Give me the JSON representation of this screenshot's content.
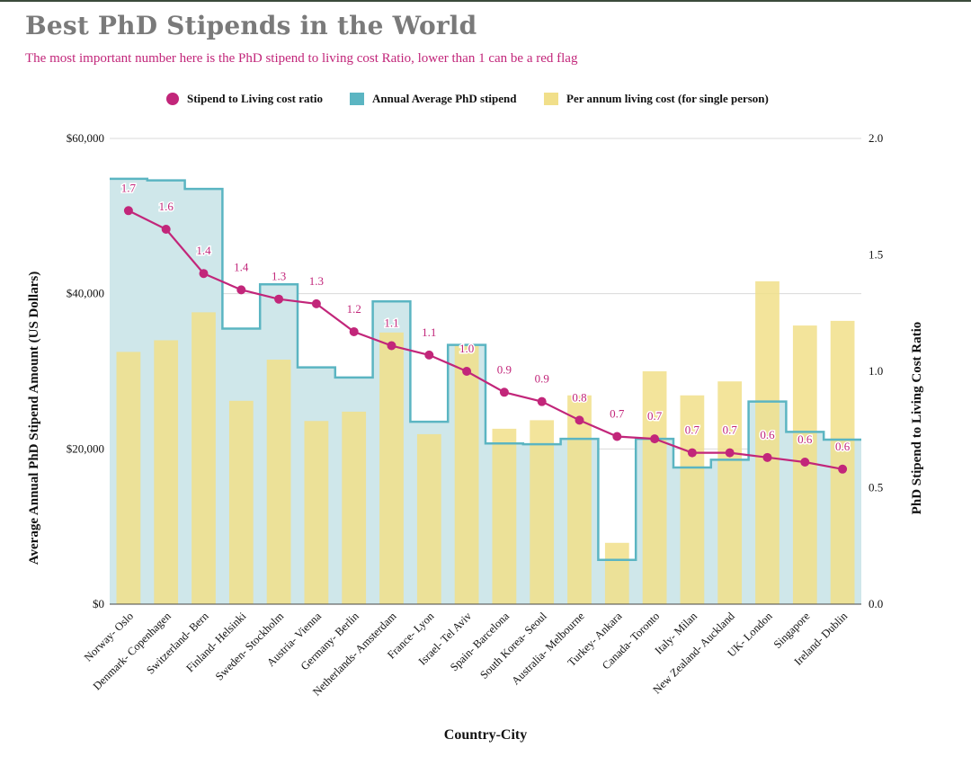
{
  "chart_data": {
    "type": "bar",
    "title": "Best PhD Stipends in the World",
    "subtitle": "The most important number here is the PhD stipend to living cost Ratio, lower than 1 can be a red flag",
    "xlabel": "Country-City",
    "ylabel": "Average Annual PhD Stipend Amount (US Dollars)",
    "y2label": "PhD Stipend to Living Cost Ratio",
    "ylim": [
      0,
      60000
    ],
    "y2lim": [
      0,
      2.0
    ],
    "yticks": [
      "$0",
      "$20,000",
      "$40,000",
      "$60,000"
    ],
    "y2ticks": [
      "0.0",
      "0.5",
      "1.0",
      "1.5",
      "2.0"
    ],
    "legend_position": "top",
    "grid": true,
    "categories": [
      "Norway- Oslo",
      "Denmark- Copenhagen",
      "Switzerland- Bern",
      "Finland- Helsinki",
      "Sweden- Stockholm",
      "Austria- Vienna",
      "Germany- Berlin",
      "Netherlands- Amsterdam",
      "France- Lyon",
      "Israel- Tel Aviv",
      "Spain- Barcelona",
      "South Korea- Seoul",
      "Australia- Melbourne",
      "Turkey- Ankara",
      "Canada- Toronto",
      "Italy- Milan",
      "New Zealand- Auckland",
      "UK- London",
      "Singapore",
      "Ireland- Dublin"
    ],
    "series": [
      {
        "name": "Stipend to Living cost ratio",
        "type": "line",
        "axis": "right",
        "color": "#c2267a",
        "values": [
          1.69,
          1.61,
          1.42,
          1.35,
          1.31,
          1.29,
          1.17,
          1.11,
          1.07,
          1.0,
          0.91,
          0.87,
          0.79,
          0.72,
          0.71,
          0.65,
          0.65,
          0.63,
          0.61,
          0.58
        ],
        "labels": [
          "1.7",
          "1.6",
          "1.4",
          "1.4",
          "1.3",
          "1.3",
          "1.2",
          "1.1",
          "1.1",
          "1.0",
          "0.9",
          "0.9",
          "0.8",
          "0.7",
          "0.7",
          "0.7",
          "0.7",
          "0.6",
          "0.6",
          "0.6"
        ]
      },
      {
        "name": "Annual Average PhD stipend",
        "type": "step-area",
        "axis": "left",
        "color": "#5bb5c2",
        "values": [
          54800,
          54600,
          53500,
          35500,
          41200,
          30500,
          29200,
          39000,
          23500,
          33400,
          20700,
          20600,
          21300,
          5700,
          21300,
          17600,
          18600,
          26100,
          22200,
          21200
        ]
      },
      {
        "name": "Per annum living cost (for single person)",
        "type": "bar",
        "axis": "left",
        "color": "#f1df8a",
        "values": [
          32500,
          34000,
          37600,
          26200,
          31500,
          23600,
          24800,
          35000,
          21900,
          33400,
          22600,
          23700,
          26900,
          7900,
          30000,
          26900,
          28700,
          41600,
          35900,
          36500
        ]
      }
    ]
  },
  "colors": {
    "ratio": "#c2267a",
    "stipend_line": "#5bb5c2",
    "stipend_fill": "#cfe7ea",
    "living": "#f1df8a",
    "title": "#7a7a7a"
  }
}
